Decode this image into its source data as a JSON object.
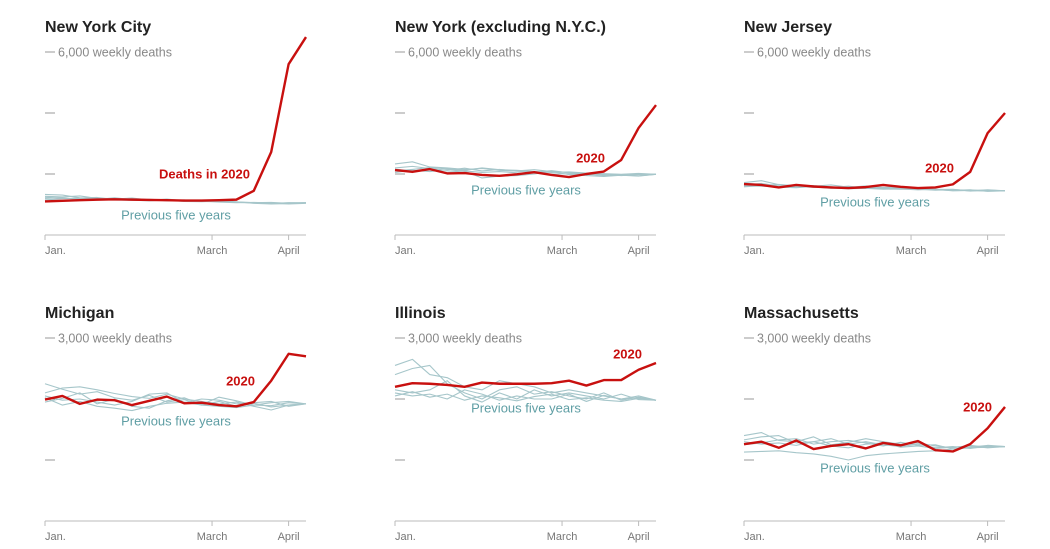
{
  "chart_data": [
    {
      "type": "line",
      "title": "New York City",
      "x": [
        0,
        1,
        2,
        3,
        4,
        5,
        6,
        7,
        8,
        9,
        10,
        11,
        12,
        13,
        14,
        15
      ],
      "xlim": [
        0,
        15
      ],
      "xticks": [
        {
          "value": 0,
          "label": "Jan."
        },
        {
          "value": 9.6,
          "label": "March"
        },
        {
          "value": 14,
          "label": "April"
        }
      ],
      "ylim": [
        0,
        6000
      ],
      "yticks": [
        {
          "value": 6000,
          "label": "6,000 weekly deaths"
        },
        {
          "value": 4000,
          "label": null
        },
        {
          "value": 2000,
          "label": null
        }
      ],
      "series": [
        {
          "name": "Deaths in 2020",
          "color": "#c8100f",
          "values": [
            1100,
            1120,
            1140,
            1160,
            1170,
            1160,
            1150,
            1140,
            1130,
            1130,
            1140,
            1160,
            1450,
            2720,
            5600,
            6490
          ]
        },
        {
          "name": "Previous five years",
          "color": "#a6c6ca",
          "values": [
            1270,
            1250,
            1280,
            1200,
            1180,
            1210,
            1150,
            1130,
            1140,
            1120,
            1100,
            1080,
            1060,
            1040,
            1050,
            1060
          ]
        },
        {
          "color": "#a6c6ca",
          "values": [
            1200,
            1230,
            1150,
            1170,
            1220,
            1160,
            1130,
            1180,
            1120,
            1100,
            1120,
            1090,
            1040,
            1020,
            1030,
            1060
          ]
        },
        {
          "color": "#a6c6ca",
          "values": [
            1150,
            1190,
            1210,
            1230,
            1170,
            1190,
            1160,
            1120,
            1150,
            1110,
            1080,
            1060,
            1070,
            1050,
            1020,
            1040
          ]
        },
        {
          "color": "#a6c6ca",
          "values": [
            1330,
            1310,
            1220,
            1180,
            1200,
            1150,
            1170,
            1140,
            1110,
            1130,
            1100,
            1070,
            1050,
            1030,
            1060,
            1050
          ]
        },
        {
          "color": "#a6c6ca",
          "values": [
            1240,
            1200,
            1180,
            1210,
            1150,
            1140,
            1120,
            1150,
            1100,
            1090,
            1110,
            1080,
            1060,
            1070,
            1040,
            1050
          ]
        }
      ]
    },
    {
      "type": "line",
      "title": "New York (excluding N.Y.C.)",
      "x": [
        0,
        1,
        2,
        3,
        4,
        5,
        6,
        7,
        8,
        9,
        10,
        11,
        12,
        13,
        14,
        15
      ],
      "xlim": [
        0,
        15
      ],
      "xticks": [
        {
          "value": 0,
          "label": "Jan."
        },
        {
          "value": 9.6,
          "label": "March"
        },
        {
          "value": 14,
          "label": "April"
        }
      ],
      "ylim": [
        0,
        6000
      ],
      "yticks": [
        {
          "value": 6000,
          "label": "6,000 weekly deaths"
        },
        {
          "value": 4000,
          "label": null
        },
        {
          "value": 2000,
          "label": null
        }
      ],
      "series": [
        {
          "name": "2020",
          "color": "#c8100f",
          "values": [
            2130,
            2070,
            2160,
            2020,
            2030,
            1970,
            1940,
            1990,
            2060,
            1970,
            1900,
            2000,
            2080,
            2460,
            3510,
            4260
          ]
        },
        {
          "name": "Previous five years",
          "color": "#a6c6ca",
          "values": [
            2330,
            2400,
            2230,
            2200,
            2150,
            2180,
            2120,
            2100,
            2140,
            2080,
            2050,
            2010,
            2000,
            1980,
            2000,
            1990
          ]
        },
        {
          "color": "#a6c6ca",
          "values": [
            2200,
            2250,
            2180,
            2120,
            2190,
            2100,
            2150,
            2090,
            2060,
            2110,
            2040,
            2000,
            1950,
            1970,
            1940,
            1990
          ]
        },
        {
          "color": "#a6c6ca",
          "values": [
            2100,
            2150,
            2210,
            2170,
            2120,
            2200,
            2140,
            2120,
            2080,
            2050,
            2070,
            2030,
            2010,
            1990,
            2020,
            1990
          ]
        },
        {
          "color": "#a6c6ca",
          "values": [
            2050,
            2120,
            2080,
            2140,
            2090,
            1870,
            1930,
            1950,
            2000,
            2080,
            1980,
            1950,
            1920,
            1960,
            1930,
            1990
          ]
        },
        {
          "color": "#a6c6ca",
          "values": [
            2160,
            2100,
            2130,
            2060,
            2100,
            2050,
            2080,
            2040,
            2030,
            2000,
            2010,
            1980,
            1990,
            1950,
            1980,
            1990
          ]
        }
      ]
    },
    {
      "type": "line",
      "title": "New Jersey",
      "x": [
        0,
        1,
        2,
        3,
        4,
        5,
        6,
        7,
        8,
        9,
        10,
        11,
        12,
        13,
        14,
        15
      ],
      "xlim": [
        0,
        15
      ],
      "xticks": [
        {
          "value": 0,
          "label": "Jan."
        },
        {
          "value": 9.6,
          "label": "March"
        },
        {
          "value": 14,
          "label": "April"
        }
      ],
      "ylim": [
        0,
        6000
      ],
      "yticks": [
        {
          "value": 6000,
          "label": "6,000 weekly deaths"
        },
        {
          "value": 4000,
          "label": null
        },
        {
          "value": 2000,
          "label": null
        }
      ],
      "series": [
        {
          "name": "2020",
          "color": "#c8100f",
          "values": [
            1670,
            1640,
            1560,
            1640,
            1590,
            1560,
            1540,
            1570,
            1640,
            1580,
            1540,
            1560,
            1660,
            2070,
            3340,
            4000
          ]
        },
        {
          "name": "Previous five years",
          "color": "#a6c6ca",
          "values": [
            1720,
            1780,
            1650,
            1620,
            1600,
            1640,
            1570,
            1580,
            1560,
            1530,
            1540,
            1500,
            1480,
            1470,
            1460,
            1450
          ]
        },
        {
          "color": "#a6c6ca",
          "values": [
            1640,
            1690,
            1610,
            1580,
            1620,
            1560,
            1600,
            1540,
            1560,
            1580,
            1520,
            1490,
            1500,
            1440,
            1470,
            1450
          ]
        },
        {
          "color": "#a6c6ca",
          "values": [
            1580,
            1620,
            1660,
            1600,
            1560,
            1580,
            1530,
            1560,
            1520,
            1500,
            1510,
            1480,
            1460,
            1480,
            1430,
            1450
          ]
        },
        {
          "color": "#a6c6ca",
          "values": [
            1700,
            1660,
            1590,
            1640,
            1580,
            1530,
            1560,
            1610,
            1540,
            1560,
            1500,
            1470,
            1490,
            1450,
            1480,
            1450
          ]
        },
        {
          "color": "#a6c6ca",
          "values": [
            1610,
            1600,
            1570,
            1550,
            1590,
            1540,
            1520,
            1530,
            1500,
            1510,
            1480,
            1500,
            1450,
            1460,
            1440,
            1450
          ]
        }
      ]
    },
    {
      "type": "line",
      "title": "Michigan",
      "x": [
        0,
        1,
        2,
        3,
        4,
        5,
        6,
        7,
        8,
        9,
        10,
        11,
        12,
        13,
        14,
        15
      ],
      "xlim": [
        0,
        15
      ],
      "xticks": [
        {
          "value": 0,
          "label": "Jan."
        },
        {
          "value": 9.6,
          "label": "March"
        },
        {
          "value": 14,
          "label": "April"
        }
      ],
      "ylim": [
        0,
        3000
      ],
      "yticks": [
        {
          "value": 3000,
          "label": "3,000 weekly deaths"
        },
        {
          "value": 2000,
          "label": null
        },
        {
          "value": 1000,
          "label": null
        }
      ],
      "series": [
        {
          "name": "2020",
          "color": "#c8100f",
          "values": [
            1990,
            2050,
            1920,
            1990,
            1980,
            1900,
            1970,
            2040,
            1930,
            1940,
            1900,
            1880,
            1950,
            2300,
            2740,
            2700
          ]
        },
        {
          "name": "Previous five years",
          "color": "#a6c6ca",
          "values": [
            2250,
            2160,
            2080,
            2120,
            2020,
            1980,
            2060,
            1950,
            1990,
            1900,
            1960,
            1880,
            1930,
            1870,
            1900,
            1920
          ]
        },
        {
          "color": "#a6c6ca",
          "values": [
            2100,
            2180,
            2200,
            2150,
            2090,
            2040,
            2010,
            2080,
            2000,
            1960,
            1920,
            1950,
            1880,
            1820,
            1900,
            1920
          ]
        },
        {
          "color": "#a6c6ca",
          "values": [
            2050,
            1980,
            2000,
            1950,
            1900,
            1960,
            2080,
            2100,
            1940,
            2000,
            1980,
            1920,
            1940,
            1960,
            1880,
            1920
          ]
        },
        {
          "color": "#a6c6ca",
          "values": [
            1950,
            2010,
            2100,
            1920,
            2000,
            1880,
            1850,
            1970,
            2020,
            1910,
            2030,
            1970,
            1900,
            1940,
            1960,
            1920
          ]
        },
        {
          "color": "#a6c6ca",
          "values": [
            2020,
            1900,
            1960,
            1880,
            1850,
            1810,
            1880,
            1930,
            1950,
            1900,
            1880,
            1860,
            1900,
            1890,
            1940,
            1920
          ]
        }
      ]
    },
    {
      "type": "line",
      "title": "Illinois",
      "x": [
        0,
        1,
        2,
        3,
        4,
        5,
        6,
        7,
        8,
        9,
        10,
        11,
        12,
        13,
        14,
        15
      ],
      "xlim": [
        0,
        15
      ],
      "xticks": [
        {
          "value": 0,
          "label": "Jan."
        },
        {
          "value": 9.6,
          "label": "March"
        },
        {
          "value": 14,
          "label": "April"
        }
      ],
      "ylim": [
        0,
        3000
      ],
      "yticks": [
        {
          "value": 3000,
          "label": "3,000 weekly deaths"
        },
        {
          "value": 2000,
          "label": null
        },
        {
          "value": 1000,
          "label": null
        }
      ],
      "series": [
        {
          "name": "2020",
          "color": "#c8100f",
          "values": [
            2200,
            2260,
            2250,
            2230,
            2200,
            2270,
            2250,
            2250,
            2250,
            2260,
            2300,
            2220,
            2310,
            2310,
            2480,
            2590
          ]
        },
        {
          "name": "Previous five years",
          "color": "#a6c6ca",
          "values": [
            2550,
            2650,
            2400,
            2350,
            2200,
            2150,
            2300,
            2250,
            2200,
            2100,
            2150,
            2100,
            2050,
            2000,
            2050,
            1980
          ]
        },
        {
          "color": "#a6c6ca",
          "values": [
            2400,
            2500,
            2550,
            2250,
            2100,
            2000,
            2150,
            2200,
            2080,
            2120,
            2050,
            2000,
            2100,
            1980,
            2030,
            1980
          ]
        },
        {
          "color": "#a6c6ca",
          "values": [
            2150,
            2100,
            2150,
            2300,
            2050,
            1950,
            2100,
            2000,
            2150,
            2050,
            2100,
            2050,
            2000,
            2080,
            1990,
            1980
          ]
        },
        {
          "color": "#a6c6ca",
          "values": [
            2100,
            2050,
            2080,
            2000,
            2150,
            2080,
            1980,
            2050,
            2000,
            2000,
            2080,
            1960,
            2060,
            2000,
            2020,
            1980
          ]
        },
        {
          "color": "#a6c6ca",
          "values": [
            2050,
            2120,
            2030,
            2080,
            1980,
            2050,
            2020,
            1970,
            2040,
            2080,
            1990,
            2020,
            1980,
            1960,
            2010,
            1980
          ]
        }
      ]
    },
    {
      "type": "line",
      "title": "Massachusetts",
      "x": [
        0,
        1,
        2,
        3,
        4,
        5,
        6,
        7,
        8,
        9,
        10,
        11,
        12,
        13,
        14,
        15
      ],
      "xlim": [
        0,
        15
      ],
      "xticks": [
        {
          "value": 0,
          "label": "Jan."
        },
        {
          "value": 9.6,
          "label": "March"
        },
        {
          "value": 14,
          "label": "April"
        }
      ],
      "ylim": [
        0,
        3000
      ],
      "yticks": [
        {
          "value": 3000,
          "label": "3,000 weekly deaths"
        },
        {
          "value": 2000,
          "label": null
        },
        {
          "value": 1000,
          "label": null
        }
      ],
      "series": [
        {
          "name": "2020",
          "color": "#c8100f",
          "values": [
            1260,
            1300,
            1200,
            1320,
            1180,
            1230,
            1260,
            1190,
            1280,
            1240,
            1310,
            1160,
            1140,
            1260,
            1520,
            1870
          ]
        },
        {
          "name": "Previous five years",
          "color": "#a6c6ca",
          "values": [
            1400,
            1450,
            1320,
            1300,
            1380,
            1250,
            1290,
            1350,
            1300,
            1260,
            1280,
            1230,
            1200,
            1240,
            1210,
            1220
          ]
        },
        {
          "color": "#a6c6ca",
          "values": [
            1330,
            1380,
            1400,
            1280,
            1300,
            1350,
            1260,
            1300,
            1250,
            1220,
            1260,
            1200,
            1220,
            1190,
            1230,
            1220
          ]
        },
        {
          "color": "#a6c6ca",
          "values": [
            1250,
            1280,
            1330,
            1350,
            1260,
            1300,
            1320,
            1280,
            1230,
            1290,
            1240,
            1250,
            1180,
            1210,
            1240,
            1220
          ]
        },
        {
          "color": "#a6c6ca",
          "values": [
            1300,
            1260,
            1280,
            1240,
            1300,
            1230,
            1200,
            1260,
            1280,
            1210,
            1230,
            1190,
            1210,
            1230,
            1200,
            1220
          ]
        },
        {
          "color": "#a6c6ca",
          "values": [
            1130,
            1140,
            1150,
            1120,
            1100,
            1060,
            1000,
            1070,
            1100,
            1120,
            1140,
            1150,
            1180,
            1200,
            1210,
            1220
          ]
        }
      ]
    }
  ]
}
